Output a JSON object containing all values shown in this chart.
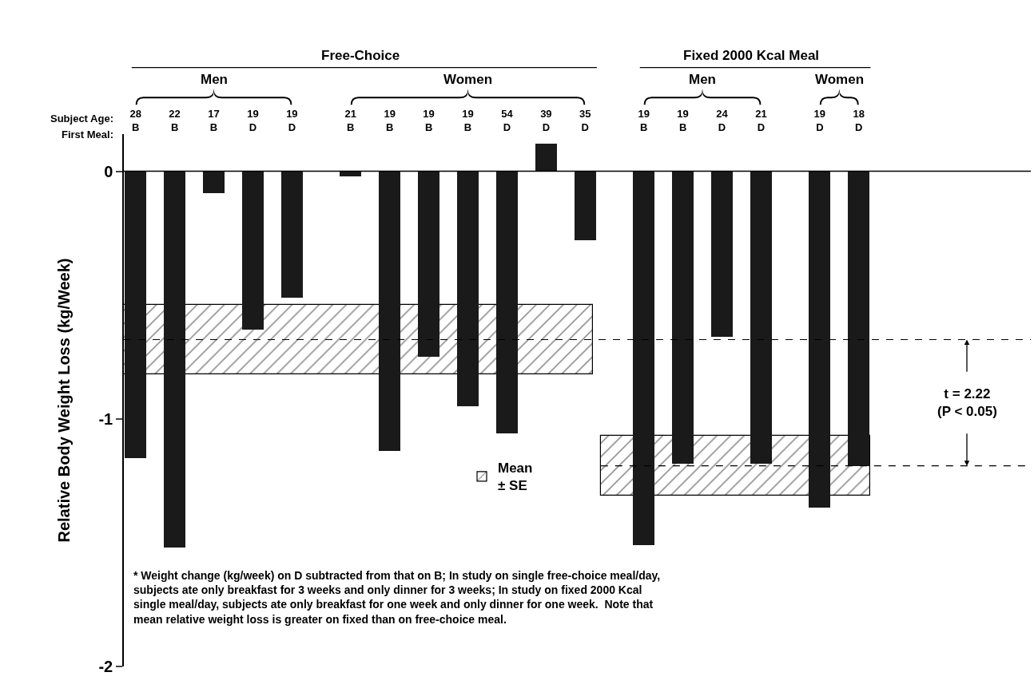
{
  "chart_data": {
    "type": "bar",
    "ylabel": "Relative Body Weight Loss (kg/Week)",
    "categories": [
      "28\nB",
      "22\nB",
      "17\nB",
      "19\nD",
      "19\nD",
      "21\nB",
      "19\nB",
      "19\nB",
      "19\nB",
      "54\nD",
      "39\nD",
      "35\nD",
      "19\nB",
      "19\nB",
      "24\nD",
      "21\nD",
      "19\nD",
      "18\nD"
    ],
    "values": [
      -1.16,
      -1.52,
      -0.09,
      -0.64,
      -0.51,
      -0.02,
      -1.13,
      -0.75,
      -0.95,
      -1.06,
      0.11,
      -0.28,
      -1.51,
      -1.18,
      -0.67,
      -1.18,
      -1.36,
      -1.19
    ],
    "color": "#1a1a1a",
    "ylim": [
      -2,
      0.15
    ],
    "yticks": [
      0,
      -1,
      -2
    ],
    "bands": [
      {
        "axis": "y",
        "from": -0.54,
        "to": -0.82,
        "label": "Mean\n± SE",
        "color": "#000000"
      },
      {
        "axis": "y",
        "from": -1.07,
        "to": -1.31,
        "label": null,
        "color": "#000000"
      }
    ],
    "ref_lines": [
      {
        "axis": "y",
        "value": -0.68,
        "label": null,
        "line_style": "dashed",
        "color": "#000000"
      },
      {
        "axis": "y",
        "value": -1.19,
        "label": null,
        "line_style": "dashed",
        "color": "#000000"
      },
      {
        "axis": "y",
        "value": 0,
        "label": null,
        "line_style": "solid",
        "color": "#000000"
      }
    ],
    "legend": "center",
    "annotations": [
      "Free-Choice",
      "Fixed 2000 Kcal Meal",
      "Men",
      "Women",
      "Men",
      "Women",
      "Subject Age:",
      "First Meal:",
      "t = 2.22\n(P < 0.05)",
      "* Weight change (kg/week) on D subtracted from that on B; In study on single free-choice meal/day,\nsubjects ate only breakfast for 3 weeks and only dinner for 3 weeks; In study on fixed 2000 Kcal\nsingle meal/day, subjects ate only breakfast for one week and only dinner for one week.  Note that\nmean relative weight loss is greater on fixed than on free-choice meal."
    ]
  }
}
